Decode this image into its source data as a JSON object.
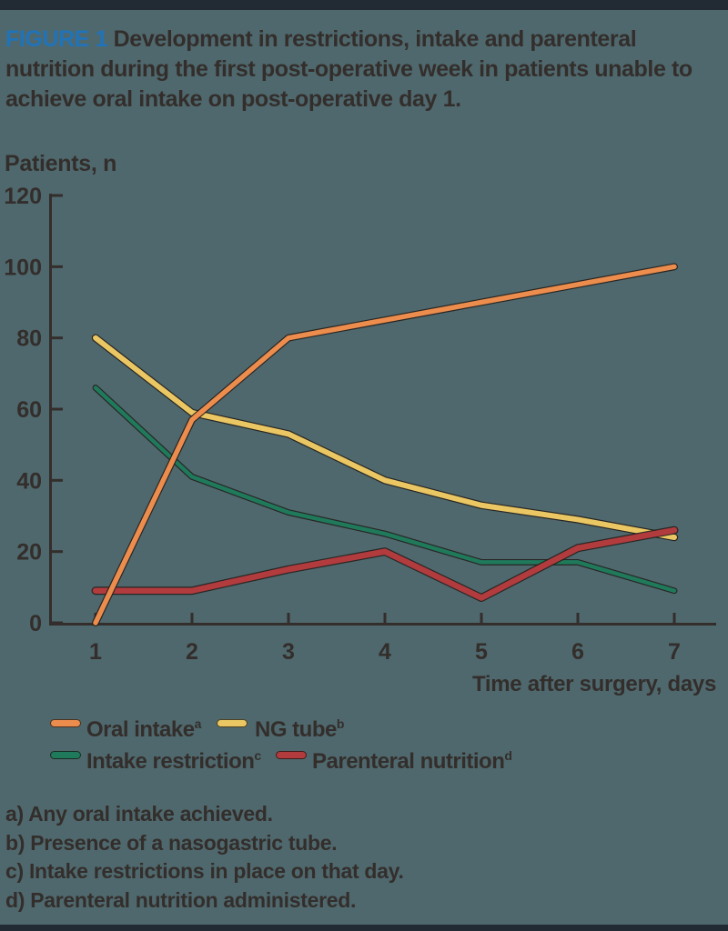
{
  "page": {
    "title_label": "FIGURE 1",
    "title_text": "Development in restrictions, intake and parenteral nutrition during the first post-operative week in patients unable to achieve oral intake on post-operative day 1."
  },
  "chart_data": {
    "type": "line",
    "ylabel": "Patients, n",
    "xlabel": "Time after surgery, days",
    "x": [
      1,
      2,
      3,
      4,
      5,
      6,
      7
    ],
    "xticks": [
      "1",
      "2",
      "3",
      "4",
      "5",
      "6",
      "7"
    ],
    "yticks": [
      0,
      20,
      40,
      60,
      80,
      100,
      120
    ],
    "ylim": [
      0,
      120
    ],
    "grid": false,
    "legend_position": "bottom",
    "series": [
      {
        "name": "Oral intake",
        "sup": "a",
        "color": "#ec8c4d",
        "values": [
          0,
          57,
          80,
          85,
          90,
          95,
          100
        ]
      },
      {
        "name": "NG tube",
        "sup": "b",
        "color": "#eac763",
        "values": [
          80,
          59,
          53,
          40,
          33,
          29,
          24
        ]
      },
      {
        "name": "Intake restriction",
        "sup": "c",
        "color": "#1f7a5c",
        "values": [
          66,
          41,
          31,
          25,
          17,
          17,
          9
        ]
      },
      {
        "name": "Parenteral nutrition",
        "sup": "d",
        "color": "#b23b3e",
        "values": [
          9,
          9,
          15,
          20,
          7,
          21,
          26
        ]
      }
    ]
  },
  "footnotes": [
    "a) Any oral intake achieved.",
    "b) Presence of a nasogastric tube.",
    "c) Intake restrictions in place on that day.",
    "d) Parenteral nutrition administered."
  ],
  "colors": {
    "background": "#4f686d",
    "text": "#332e2b",
    "figure_label_blue": "#2173b8",
    "rule": "#222a33",
    "axis": "#332e2b",
    "line_outline": "#231f1c"
  }
}
